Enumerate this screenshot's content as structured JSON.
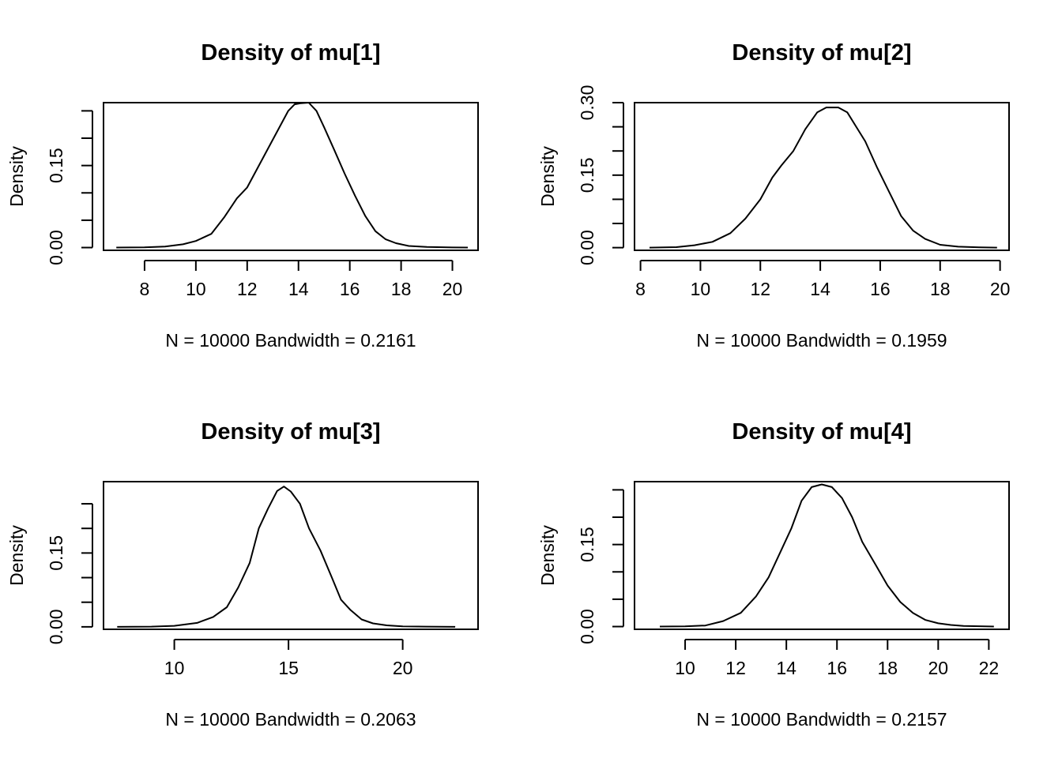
{
  "chart_data": [
    {
      "type": "line",
      "title": "Density of mu[1]",
      "xlabel": "N = 10000   Bandwidth = 0.2161",
      "ylabel": "Density",
      "xlim": [
        6.4,
        21.0
      ],
      "ylim": [
        -0.005,
        0.265
      ],
      "x_ticks": [
        8,
        10,
        12,
        14,
        16,
        18,
        20
      ],
      "y_ticks": [
        0.0,
        0.05,
        0.1,
        0.15,
        0.2,
        0.25
      ],
      "y_tick_labels": [
        "0.00",
        "",
        "",
        "0.15",
        "",
        ""
      ],
      "series": [
        {
          "x": [
            6.9,
            8.0,
            8.8,
            9.5,
            10.0,
            10.6,
            11.1,
            11.6,
            12.0,
            12.4,
            12.8,
            13.2,
            13.6,
            13.85,
            14.1,
            14.4,
            14.7,
            15.0,
            15.4,
            15.8,
            16.2,
            16.6,
            17.0,
            17.4,
            17.8,
            18.3,
            19.0,
            20.0,
            20.6
          ],
          "y": [
            0.0,
            0.0005,
            0.002,
            0.006,
            0.012,
            0.025,
            0.055,
            0.09,
            0.11,
            0.145,
            0.18,
            0.215,
            0.25,
            0.262,
            0.264,
            0.265,
            0.25,
            0.22,
            0.178,
            0.135,
            0.095,
            0.058,
            0.03,
            0.015,
            0.008,
            0.003,
            0.001,
            0.0002,
            0.0
          ]
        }
      ]
    },
    {
      "type": "line",
      "title": "Density of mu[2]",
      "xlabel": "N = 10000   Bandwidth = 0.1959",
      "ylabel": "Density",
      "xlim": [
        7.8,
        20.3
      ],
      "ylim": [
        -0.0055,
        0.3
      ],
      "x_ticks": [
        8,
        10,
        12,
        14,
        16,
        18,
        20
      ],
      "y_ticks": [
        0.0,
        0.05,
        0.1,
        0.15,
        0.2,
        0.25,
        0.3
      ],
      "y_tick_labels": [
        "0.00",
        "",
        "",
        "0.15",
        "",
        "",
        "0.30"
      ],
      "series": [
        {
          "x": [
            8.3,
            9.2,
            9.8,
            10.4,
            11.0,
            11.5,
            12.0,
            12.4,
            12.7,
            13.1,
            13.5,
            13.9,
            14.2,
            14.6,
            14.9,
            15.2,
            15.5,
            15.9,
            16.3,
            16.7,
            17.1,
            17.5,
            18.0,
            18.6,
            19.3,
            19.9
          ],
          "y": [
            0.0,
            0.001,
            0.005,
            0.012,
            0.03,
            0.06,
            0.1,
            0.145,
            0.17,
            0.2,
            0.245,
            0.28,
            0.29,
            0.29,
            0.28,
            0.25,
            0.22,
            0.165,
            0.115,
            0.065,
            0.035,
            0.018,
            0.006,
            0.002,
            0.0006,
            0.0
          ]
        }
      ]
    },
    {
      "type": "line",
      "title": "Density of mu[3]",
      "xlabel": "N = 10000   Bandwidth = 0.2063",
      "ylabel": "Density",
      "xlim": [
        6.9,
        23.3
      ],
      "ylim": [
        -0.005,
        0.295
      ],
      "x_ticks": [
        10,
        15,
        20
      ],
      "y_ticks": [
        0.0,
        0.05,
        0.1,
        0.15,
        0.2,
        0.25
      ],
      "y_tick_labels": [
        "0.00",
        "",
        "",
        "0.15",
        "",
        ""
      ],
      "series": [
        {
          "x": [
            7.5,
            9.0,
            10.0,
            11.0,
            11.7,
            12.3,
            12.8,
            13.3,
            13.7,
            14.1,
            14.5,
            14.8,
            15.1,
            15.5,
            15.9,
            16.4,
            16.9,
            17.3,
            17.7,
            18.2,
            18.7,
            19.3,
            20.0,
            21.0,
            22.3
          ],
          "y": [
            0.0,
            0.0005,
            0.002,
            0.008,
            0.02,
            0.04,
            0.08,
            0.13,
            0.2,
            0.24,
            0.276,
            0.285,
            0.275,
            0.25,
            0.2,
            0.155,
            0.1,
            0.055,
            0.035,
            0.015,
            0.007,
            0.003,
            0.001,
            0.0005,
            0.0
          ]
        }
      ]
    },
    {
      "type": "line",
      "title": "Density of mu[4]",
      "xlabel": "N = 10000   Bandwidth = 0.2157",
      "ylabel": "Density",
      "xlim": [
        8.0,
        22.8
      ],
      "ylim": [
        -0.005,
        0.265
      ],
      "x_ticks": [
        10,
        12,
        14,
        16,
        18,
        20,
        22
      ],
      "y_ticks": [
        0.0,
        0.05,
        0.1,
        0.15,
        0.2,
        0.25
      ],
      "y_tick_labels": [
        "0.00",
        "",
        "",
        "0.15",
        "",
        ""
      ],
      "series": [
        {
          "x": [
            9.0,
            10.0,
            10.8,
            11.5,
            12.2,
            12.8,
            13.3,
            13.8,
            14.2,
            14.6,
            15.0,
            15.4,
            15.8,
            16.2,
            16.6,
            17.0,
            17.5,
            18.0,
            18.5,
            19.0,
            19.5,
            20.0,
            20.5,
            21.0,
            22.2
          ],
          "y": [
            0.0,
            0.0005,
            0.002,
            0.01,
            0.025,
            0.055,
            0.09,
            0.14,
            0.18,
            0.23,
            0.255,
            0.26,
            0.255,
            0.235,
            0.2,
            0.155,
            0.115,
            0.075,
            0.045,
            0.025,
            0.012,
            0.006,
            0.003,
            0.001,
            0.0
          ]
        }
      ]
    }
  ]
}
